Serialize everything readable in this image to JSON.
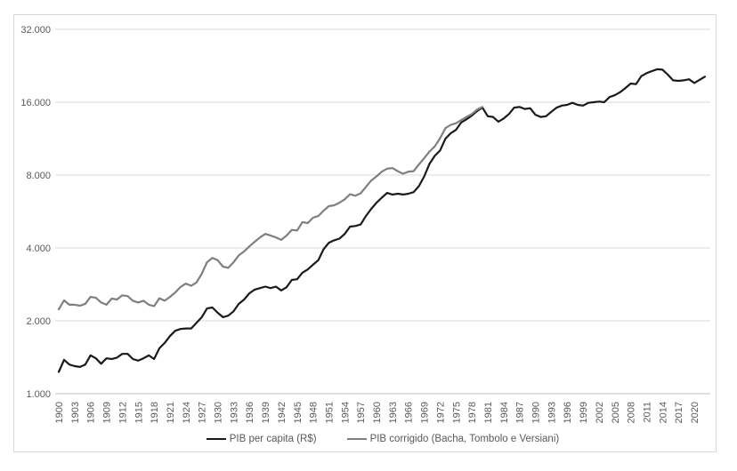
{
  "chart_data": {
    "type": "line",
    "title": "",
    "xlabel": "",
    "ylabel": "",
    "grid": true,
    "legend_position": "bottom-center",
    "background": "#ffffff",
    "x_axis": {
      "range": [
        1900,
        2022
      ],
      "frequency": "annual",
      "tick_step_years": 3,
      "tick_labels": [
        "1900",
        "1903",
        "1906",
        "1909",
        "1912",
        "1915",
        "1918",
        "1921",
        "1924",
        "1927",
        "1930",
        "1933",
        "1936",
        "1939",
        "1942",
        "1945",
        "1948",
        "1951",
        "1954",
        "1957",
        "1960",
        "1963",
        "1966",
        "1969",
        "1972",
        "1975",
        "1978",
        "1981",
        "1984",
        "1987",
        "1990",
        "1993",
        "1996",
        "1999",
        "2002",
        "2005",
        "2008",
        "2011",
        "2014",
        "2017",
        "2020"
      ]
    },
    "y_axis": {
      "scale": "log2",
      "range": [
        1000,
        32000
      ],
      "tick_values": [
        1000,
        2000,
        4000,
        8000,
        16000,
        32000
      ],
      "tick_labels": [
        "1.000",
        "2.000",
        "4.000",
        "8.000",
        "16.000",
        "32.000"
      ]
    },
    "series": [
      {
        "name": "PIB per capita (R$)",
        "color": "#1a1a1a",
        "start_year": 1900,
        "values": [
          1230,
          1380,
          1320,
          1300,
          1290,
          1320,
          1440,
          1400,
          1330,
          1400,
          1390,
          1410,
          1460,
          1460,
          1390,
          1370,
          1400,
          1440,
          1390,
          1540,
          1620,
          1730,
          1820,
          1850,
          1860,
          1860,
          1960,
          2070,
          2250,
          2270,
          2160,
          2070,
          2100,
          2190,
          2350,
          2450,
          2600,
          2690,
          2730,
          2770,
          2730,
          2770,
          2670,
          2750,
          2950,
          2970,
          3160,
          3260,
          3410,
          3560,
          3950,
          4200,
          4300,
          4370,
          4570,
          4900,
          4930,
          5000,
          5420,
          5800,
          6150,
          6450,
          6750,
          6650,
          6700,
          6650,
          6700,
          6800,
          7200,
          7900,
          8900,
          9600,
          10100,
          11300,
          11900,
          12300,
          13200,
          13600,
          14100,
          14700,
          15200,
          14000,
          13900,
          13300,
          13700,
          14300,
          15200,
          15300,
          15000,
          15100,
          14200,
          13900,
          14000,
          14600,
          15200,
          15500,
          15600,
          15900,
          15600,
          15500,
          15900,
          16000,
          16100,
          16000,
          16800,
          17100,
          17600,
          18300,
          19100,
          19000,
          20500,
          21100,
          21500,
          21900,
          21800,
          20800,
          19700,
          19600,
          19700,
          19900,
          19200,
          19800,
          20400
        ]
      },
      {
        "name": "PIB corrigido (Bacha, Tombolo e Versiani)",
        "color": "#7f7f7f",
        "start_year": 1900,
        "values": [
          2230,
          2430,
          2330,
          2330,
          2310,
          2350,
          2510,
          2490,
          2380,
          2330,
          2470,
          2450,
          2550,
          2530,
          2420,
          2380,
          2420,
          2330,
          2300,
          2480,
          2420,
          2510,
          2620,
          2760,
          2850,
          2790,
          2880,
          3130,
          3490,
          3640,
          3560,
          3350,
          3310,
          3490,
          3730,
          3870,
          4060,
          4240,
          4420,
          4570,
          4500,
          4420,
          4320,
          4500,
          4750,
          4720,
          5110,
          5070,
          5330,
          5420,
          5700,
          5950,
          6000,
          6150,
          6350,
          6670,
          6570,
          6730,
          7150,
          7600,
          7900,
          8260,
          8500,
          8550,
          8300,
          8100,
          8260,
          8300,
          8850,
          9400,
          10000,
          10500,
          11350,
          12500,
          12900,
          13100,
          13500,
          13900,
          14300,
          14900,
          15300
        ]
      }
    ]
  },
  "colors": {
    "gridline": "#d9d9d9",
    "axis_line": "#bfbfbf",
    "tick_label": "#595959",
    "legend_text": "#595959",
    "frame_border": "#d9d9d9",
    "background": "#ffffff"
  },
  "legend": {
    "items": [
      {
        "label": "PIB per capita (R$)"
      },
      {
        "label": "PIB corrigido (Bacha, Tombolo e Versiani)"
      }
    ]
  }
}
